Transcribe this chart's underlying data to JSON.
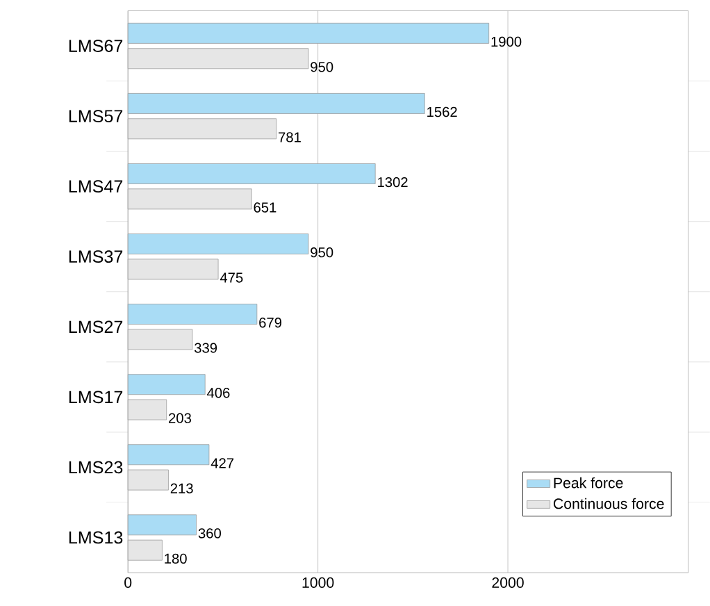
{
  "chart_data": {
    "type": "bar",
    "orientation": "horizontal",
    "categories": [
      "LMS67",
      "LMS57",
      "LMS47",
      "LMS37",
      "LMS27",
      "LMS17",
      "LMS23",
      "LMS13"
    ],
    "series": [
      {
        "name": "Peak force",
        "color": "#a9dcf5",
        "values": [
          1900,
          1562,
          1302,
          950,
          679,
          406,
          427,
          360
        ]
      },
      {
        "name": "Continuous force",
        "color": "#e6e6e6",
        "values": [
          950,
          781,
          651,
          475,
          339,
          203,
          213,
          180
        ]
      }
    ],
    "xlim": [
      0,
      2950
    ],
    "xticks": [
      0,
      1000,
      2000
    ],
    "grid": "x",
    "legend": "bottom right",
    "data_labels": true
  }
}
